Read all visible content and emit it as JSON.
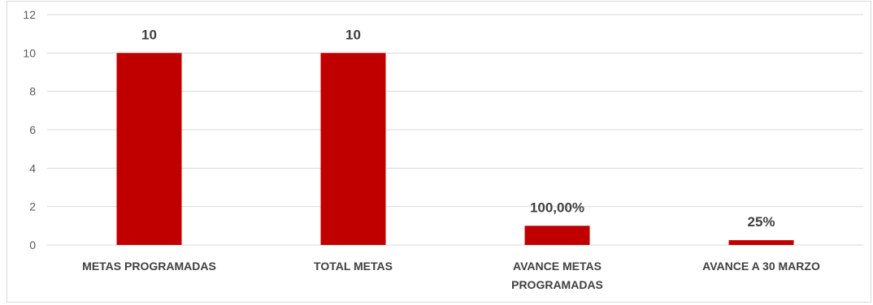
{
  "chart_data": {
    "type": "bar",
    "title": "",
    "xlabel": "",
    "ylabel": "",
    "categories": [
      [
        "METAS PROGRAMADAS"
      ],
      [
        "TOTAL METAS"
      ],
      [
        "AVANCE METAS",
        "PROGRAMADAS"
      ],
      [
        "AVANCE A 30 MARZO"
      ]
    ],
    "values": [
      10,
      10,
      1,
      0.25
    ],
    "data_labels": [
      "10",
      "10",
      "100,00%",
      "25%"
    ],
    "ylim": [
      0,
      12
    ],
    "yticks": [
      0,
      2,
      4,
      6,
      8,
      10,
      12
    ],
    "grid": true,
    "legend": "none",
    "colors": {
      "bar": "#C00000",
      "grid": "#d9d9d9",
      "tick_text": "#595959",
      "label_text": "#404040"
    }
  }
}
